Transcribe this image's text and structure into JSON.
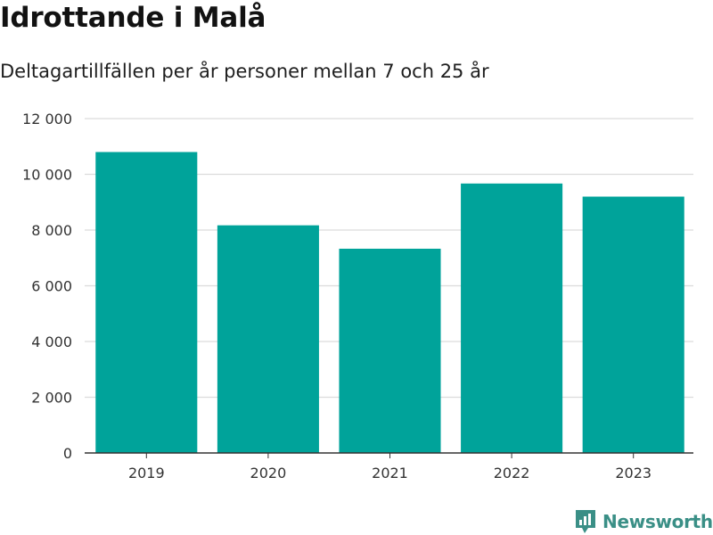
{
  "header": {
    "title": "Idrottande i Malå",
    "subtitle": "Deltagartillfällen per år personer mellan 7 och 25 år"
  },
  "chart_data": {
    "type": "bar",
    "title": "Idrottande i Malå",
    "subtitle": "Deltagartillfällen per år personer mellan 7 och 25 år",
    "categories": [
      "2019",
      "2020",
      "2021",
      "2022",
      "2023"
    ],
    "values": [
      10800,
      8170,
      7330,
      9670,
      9200
    ],
    "xlabel": "",
    "ylabel": "",
    "ylim": [
      0,
      12000
    ],
    "yticks": [
      0,
      2000,
      4000,
      6000,
      8000,
      10000,
      12000
    ],
    "ytick_labels": [
      "0",
      "2 000",
      "4 000",
      "6 000",
      "8 000",
      "10 000",
      "12 000"
    ],
    "grid": true,
    "bar_color": "#00a39a"
  },
  "branding": {
    "logo_text": "Newsworthy",
    "logo_icon": "newsworthy-bar-chart-icon",
    "logo_color": "#3a8f86"
  }
}
